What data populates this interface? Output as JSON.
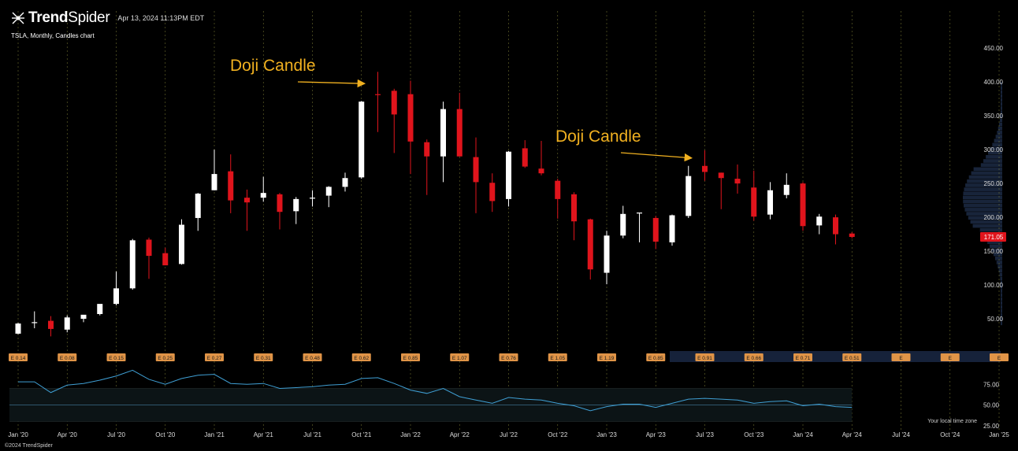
{
  "header": {
    "brand_bold": "Trend",
    "brand_light": "Spider",
    "datetime": "Apr 13, 2024 11:13PM EDT",
    "subtitle": "TSLA, Monthly, Candles chart"
  },
  "footer": {
    "copyright": "©2024 TrendSpider",
    "timezone": "Your local time zone"
  },
  "annotations": [
    {
      "text": "Doji Candle",
      "target_month": "Nov 2021",
      "target_price": 400
    },
    {
      "text": "Doji Candle",
      "target_month": "Jul 2023",
      "target_price": 290
    }
  ],
  "colors": {
    "up": "#ffffff",
    "down": "#e0141c",
    "grid": "#8a8a3a",
    "rsi": "#3f9fd4",
    "accent": "#f0b020",
    "earnings": "#e09447",
    "price_badge": "#e0141c"
  },
  "chart_data": {
    "type": "candlestick",
    "title": "TSLA, Monthly, Candles chart",
    "y_ticks": [
      "450.00",
      "400.00",
      "350.00",
      "300.00",
      "250.00",
      "200.00",
      "150.00",
      "100.00",
      "50.00"
    ],
    "ylim": [
      0,
      470
    ],
    "last_price": "171.05",
    "x_labels": [
      "Jan '20",
      "Apr '20",
      "Jul '20",
      "Oct '20",
      "Jan '21",
      "Apr '21",
      "Jul '21",
      "Oct '21",
      "Jan '22",
      "Apr '22",
      "Jul '22",
      "Oct '22",
      "Jan '23",
      "Apr '23",
      "Jul '23",
      "Oct '23",
      "Jan '24",
      "Apr '24",
      "Jul '24",
      "Oct '24",
      "Jan '25"
    ],
    "candles": [
      {
        "t": "Jan 2020",
        "o": 28,
        "h": 44,
        "l": 27,
        "c": 43
      },
      {
        "t": "Feb 2020",
        "o": 44,
        "h": 61,
        "l": 36,
        "c": 45
      },
      {
        "t": "Mar 2020",
        "o": 47,
        "h": 54,
        "l": 24,
        "c": 35
      },
      {
        "t": "Apr 2020",
        "o": 34,
        "h": 55,
        "l": 30,
        "c": 52
      },
      {
        "t": "May 2020",
        "o": 50,
        "h": 55,
        "l": 45,
        "c": 56
      },
      {
        "t": "Jun 2020",
        "o": 57,
        "h": 70,
        "l": 55,
        "c": 72
      },
      {
        "t": "Jul 2020",
        "o": 72,
        "h": 120,
        "l": 70,
        "c": 95
      },
      {
        "t": "Aug 2020",
        "o": 95,
        "h": 168,
        "l": 93,
        "c": 166
      },
      {
        "t": "Sep 2020",
        "o": 167,
        "h": 170,
        "l": 109,
        "c": 143
      },
      {
        "t": "Oct 2020",
        "o": 147,
        "h": 155,
        "l": 130,
        "c": 129
      },
      {
        "t": "Nov 2020",
        "o": 131,
        "h": 197,
        "l": 130,
        "c": 189
      },
      {
        "t": "Dec 2020",
        "o": 199,
        "h": 236,
        "l": 180,
        "c": 235
      },
      {
        "t": "Jan 2021",
        "o": 240,
        "h": 300,
        "l": 240,
        "c": 264
      },
      {
        "t": "Feb 2021",
        "o": 268,
        "h": 293,
        "l": 206,
        "c": 225
      },
      {
        "t": "Mar 2021",
        "o": 229,
        "h": 241,
        "l": 180,
        "c": 222
      },
      {
        "t": "Apr 2021",
        "o": 229,
        "h": 260,
        "l": 223,
        "c": 236
      },
      {
        "t": "May 2021",
        "o": 234,
        "h": 236,
        "l": 182,
        "c": 208
      },
      {
        "t": "Jun 2021",
        "o": 209,
        "h": 230,
        "l": 190,
        "c": 227
      },
      {
        "t": "Jul 2021",
        "o": 228,
        "h": 240,
        "l": 216,
        "c": 229
      },
      {
        "t": "Aug 2021",
        "o": 232,
        "h": 246,
        "l": 215,
        "c": 245
      },
      {
        "t": "Sep 2021",
        "o": 245,
        "h": 266,
        "l": 238,
        "c": 258
      },
      {
        "t": "Oct 2021",
        "o": 259,
        "h": 372,
        "l": 257,
        "c": 371
      },
      {
        "t": "Nov 2021",
        "o": 382,
        "h": 415,
        "l": 326,
        "c": 381
      },
      {
        "t": "Dec 2021",
        "o": 387,
        "h": 390,
        "l": 295,
        "c": 352
      },
      {
        "t": "Jan 2022",
        "o": 382,
        "h": 402,
        "l": 264,
        "c": 312
      },
      {
        "t": "Feb 2022",
        "o": 311,
        "h": 315,
        "l": 233,
        "c": 290
      },
      {
        "t": "Mar 2022",
        "o": 290,
        "h": 371,
        "l": 252,
        "c": 360
      },
      {
        "t": "Apr 2022",
        "o": 360,
        "h": 384,
        "l": 290,
        "c": 290
      },
      {
        "t": "May 2022",
        "o": 289,
        "h": 318,
        "l": 206,
        "c": 252
      },
      {
        "t": "Jun 2022",
        "o": 251,
        "h": 265,
        "l": 208,
        "c": 224
      },
      {
        "t": "Jul 2022",
        "o": 227,
        "h": 298,
        "l": 216,
        "c": 297
      },
      {
        "t": "Aug 2022",
        "o": 302,
        "h": 314,
        "l": 273,
        "c": 275
      },
      {
        "t": "Sep 2022",
        "o": 272,
        "h": 313,
        "l": 262,
        "c": 265
      },
      {
        "t": "Oct 2022",
        "o": 254,
        "h": 257,
        "l": 198,
        "c": 227
      },
      {
        "t": "Nov 2022",
        "o": 234,
        "h": 237,
        "l": 166,
        "c": 194
      },
      {
        "t": "Dec 2022",
        "o": 197,
        "h": 198,
        "l": 108,
        "c": 123
      },
      {
        "t": "Jan 2023",
        "o": 118,
        "h": 180,
        "l": 101,
        "c": 173
      },
      {
        "t": "Feb 2023",
        "o": 173,
        "h": 217,
        "l": 169,
        "c": 205
      },
      {
        "t": "Mar 2023",
        "o": 206,
        "h": 207,
        "l": 163,
        "c": 207
      },
      {
        "t": "Apr 2023",
        "o": 199,
        "h": 202,
        "l": 153,
        "c": 164
      },
      {
        "t": "May 2023",
        "o": 163,
        "h": 204,
        "l": 158,
        "c": 203
      },
      {
        "t": "Jun 2023",
        "o": 202,
        "h": 276,
        "l": 199,
        "c": 261
      },
      {
        "t": "Jul 2023",
        "o": 276,
        "h": 299,
        "l": 254,
        "c": 267
      },
      {
        "t": "Aug 2023",
        "o": 266,
        "h": 266,
        "l": 212,
        "c": 258
      },
      {
        "t": "Sep 2023",
        "o": 257,
        "h": 278,
        "l": 235,
        "c": 250
      },
      {
        "t": "Oct 2023",
        "o": 244,
        "h": 269,
        "l": 195,
        "c": 201
      },
      {
        "t": "Nov 2023",
        "o": 204,
        "h": 252,
        "l": 197,
        "c": 240
      },
      {
        "t": "Dec 2023",
        "o": 233,
        "h": 265,
        "l": 228,
        "c": 248
      },
      {
        "t": "Jan 2024",
        "o": 250,
        "h": 252,
        "l": 180,
        "c": 187
      },
      {
        "t": "Feb 2024",
        "o": 188,
        "h": 205,
        "l": 175,
        "c": 201
      },
      {
        "t": "Mar 2024",
        "o": 200,
        "h": 204,
        "l": 160,
        "c": 175
      },
      {
        "t": "Apr 2024",
        "o": 176,
        "h": 178,
        "l": 169,
        "c": 171
      }
    ],
    "earnings": [
      {
        "label": "E 0.14",
        "x": "Jan 2020"
      },
      {
        "label": "E 0.08",
        "x": "Apr 2020"
      },
      {
        "label": "E 0.15",
        "x": "Jul 2020"
      },
      {
        "label": "E 0.25",
        "x": "Oct 2020"
      },
      {
        "label": "E 0.27",
        "x": "Jan 2021"
      },
      {
        "label": "E 0.31",
        "x": "Apr 2021"
      },
      {
        "label": "E 0.48",
        "x": "Jul 2021"
      },
      {
        "label": "E 0.62",
        "x": "Oct 2021"
      },
      {
        "label": "E 0.85",
        "x": "Jan 2022"
      },
      {
        "label": "E 1.07",
        "x": "Apr 2022"
      },
      {
        "label": "E 0.76",
        "x": "Jul 2022"
      },
      {
        "label": "E 1.05",
        "x": "Oct 2022"
      },
      {
        "label": "E 1.19",
        "x": "Jan 2023"
      },
      {
        "label": "E 0.85",
        "x": "Apr 2023"
      },
      {
        "label": "E 0.91",
        "x": "Jul 2023"
      },
      {
        "label": "E 0.66",
        "x": "Oct 2023"
      },
      {
        "label": "E 0.71",
        "x": "Jan 2024"
      },
      {
        "label": "E 0.51",
        "x": "Apr 2024"
      },
      {
        "label": "E",
        "x": "Jul 2024"
      },
      {
        "label": "E",
        "x": "Oct 2024"
      },
      {
        "label": "E",
        "x": "Jan 2025"
      }
    ],
    "rsi": {
      "ticks": [
        "75.00",
        "50.00",
        "25.00"
      ],
      "ylim": [
        20,
        100
      ],
      "values": [
        78,
        78,
        65,
        74,
        76,
        80,
        85,
        92,
        81,
        75,
        82,
        86,
        87,
        76,
        75,
        76,
        70,
        71,
        72,
        74,
        75,
        82,
        83,
        76,
        68,
        64,
        70,
        60,
        56,
        52,
        59,
        57,
        56,
        52,
        49,
        43,
        48,
        51,
        51,
        47,
        52,
        57,
        58,
        57,
        56,
        52,
        54,
        55,
        49,
        51,
        48,
        47
      ]
    }
  }
}
